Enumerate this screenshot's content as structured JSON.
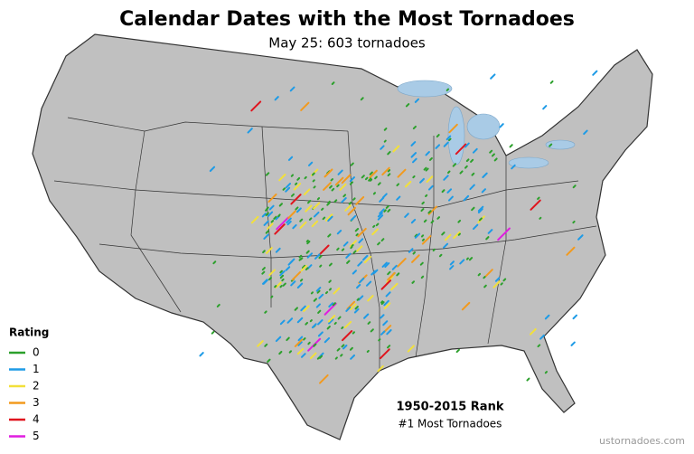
{
  "title": "Calendar Dates with the Most Tornadoes",
  "subtitle": "May 25: 603 tornadoes",
  "legend": {
    "title": "Rating",
    "items": [
      {
        "label": "0",
        "color": "#2ca02c"
      },
      {
        "label": "1",
        "color": "#1e9be6"
      },
      {
        "label": "2",
        "color": "#f2e03a"
      },
      {
        "label": "3",
        "color": "#f29a1e"
      },
      {
        "label": "4",
        "color": "#e0141e"
      },
      {
        "label": "5",
        "color": "#e01ee0"
      }
    ]
  },
  "rank": {
    "title": "1950-2015 Rank",
    "subtitle": "#1 Most Tornadoes"
  },
  "source": "ustornadoes.com"
}
